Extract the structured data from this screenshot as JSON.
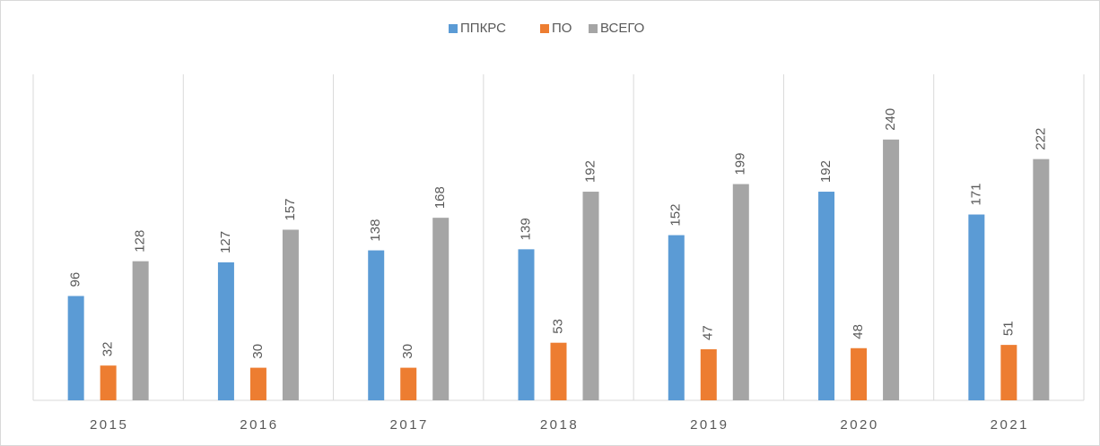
{
  "chart_data": {
    "type": "bar",
    "categories": [
      "2015",
      "2016",
      "2017",
      "2018",
      "2019",
      "2020",
      "2021"
    ],
    "series": [
      {
        "name": "ППКРС",
        "color": "#5b9bd5",
        "values": [
          96,
          127,
          138,
          139,
          152,
          192,
          171
        ]
      },
      {
        "name": "ПО",
        "color": "#ed7d31",
        "values": [
          32,
          30,
          30,
          53,
          47,
          48,
          51
        ]
      },
      {
        "name": "ВСЕГО",
        "color": "#a5a5a5",
        "values": [
          128,
          157,
          168,
          192,
          199,
          240,
          222
        ]
      }
    ],
    "ylim": [
      0,
      300
    ],
    "legend": "top"
  }
}
